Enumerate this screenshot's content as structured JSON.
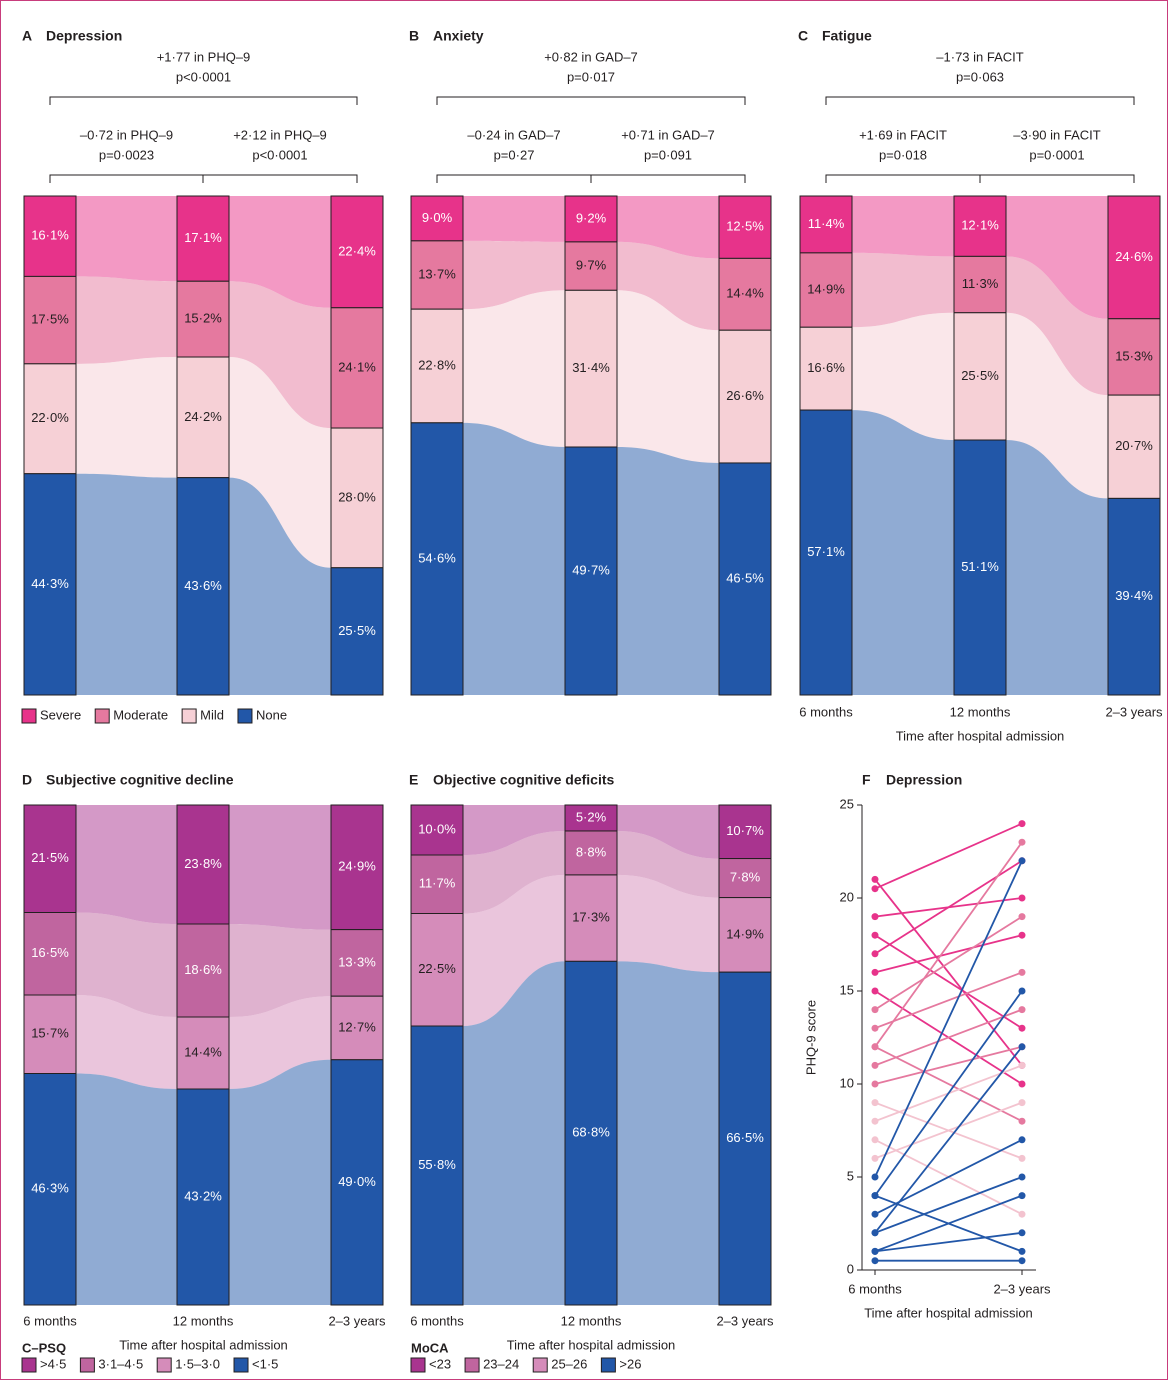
{
  "chart_data": [
    {
      "type": "alluvial",
      "panel": "A",
      "title": "Depression",
      "comparisons": {
        "overall": [
          "+1·77 in PHQ–9",
          "p<0·0001"
        ],
        "first": [
          "–0·72 in PHQ–9",
          "p=0·0023"
        ],
        "second": [
          "+2·12 in PHQ–9",
          "p<0·0001"
        ]
      },
      "series": [
        {
          "name": "Severe",
          "color": "#e7338a",
          "values": [
            16.1,
            17.1,
            22.4
          ],
          "value_labels": [
            "16·1%",
            "17·1%",
            "22·4%"
          ]
        },
        {
          "name": "Moderate",
          "color": "#e5799f",
          "values": [
            17.5,
            15.2,
            24.1
          ],
          "value_labels": [
            "17·5%",
            "15·2%",
            "24·1%"
          ]
        },
        {
          "name": "Mild",
          "color": "#f6d0d6",
          "values": [
            22.0,
            24.2,
            28.0
          ],
          "value_labels": [
            "22·0%",
            "24·2%",
            "28·0%"
          ]
        },
        {
          "name": "None",
          "color": "#2257a8",
          "values": [
            44.3,
            43.6,
            25.5
          ],
          "value_labels": [
            "44·3%",
            "43·6%",
            "25·5%"
          ]
        }
      ]
    },
    {
      "type": "alluvial",
      "panel": "B",
      "title": "Anxiety",
      "comparisons": {
        "overall": [
          "+0·82 in GAD–7",
          "p=0·017"
        ],
        "first": [
          "–0·24 in GAD–7",
          "p=0·27"
        ],
        "second": [
          "+0·71 in GAD–7",
          "p=0·091"
        ]
      },
      "series": [
        {
          "color": "#e7338a",
          "values": [
            9.0,
            9.2,
            12.5
          ],
          "value_labels": [
            "9·0%",
            "9·2%",
            "12·5%"
          ]
        },
        {
          "color": "#e5799f",
          "values": [
            13.7,
            9.7,
            14.4
          ],
          "value_labels": [
            "13·7%",
            "9·7%",
            "14·4%"
          ]
        },
        {
          "color": "#f6d0d6",
          "values": [
            22.8,
            31.4,
            26.6
          ],
          "value_labels": [
            "22·8%",
            "31·4%",
            "26·6%"
          ]
        },
        {
          "color": "#2257a8",
          "values": [
            54.6,
            49.7,
            46.5
          ],
          "value_labels": [
            "54·6%",
            "49·7%",
            "46·5%"
          ]
        }
      ]
    },
    {
      "type": "alluvial",
      "panel": "C",
      "title": "Fatigue",
      "categories": [
        "6 months",
        "12 months",
        "2–3 years"
      ],
      "xlabel": "Time after hospital admission",
      "comparisons": {
        "overall": [
          "–1·73 in FACIT",
          "p=0·063"
        ],
        "first": [
          "+1·69 in FACIT",
          "p=0·018"
        ],
        "second": [
          "–3·90 in FACIT",
          "p=0·0001"
        ]
      },
      "series": [
        {
          "color": "#e7338a",
          "values": [
            11.4,
            12.1,
            24.6
          ],
          "value_labels": [
            "11·4%",
            "12·1%",
            "24·6%"
          ]
        },
        {
          "color": "#e5799f",
          "values": [
            14.9,
            11.3,
            15.3
          ],
          "value_labels": [
            "14·9%",
            "11·3%",
            "15·3%"
          ]
        },
        {
          "color": "#f6d0d6",
          "values": [
            16.6,
            25.5,
            20.7
          ],
          "value_labels": [
            "16·6%",
            "25·5%",
            "20·7%"
          ]
        },
        {
          "color": "#2257a8",
          "values": [
            57.1,
            51.1,
            39.4
          ],
          "value_labels": [
            "57·1%",
            "51·1%",
            "39·4%"
          ]
        }
      ]
    },
    {
      "type": "alluvial",
      "panel": "D",
      "title": "Subjective cognitive decline",
      "categories": [
        "6 months",
        "12 months",
        "2–3 years"
      ],
      "xlabel": "Time after hospital admission",
      "legend_title": "C–PSQ",
      "series": [
        {
          "name": ">4·5",
          "color": "#a9348f",
          "values": [
            21.5,
            23.8,
            24.9
          ],
          "value_labels": [
            "21·5%",
            "23·8%",
            "24·9%"
          ]
        },
        {
          "name": "3·1–4·5",
          "color": "#c0659f",
          "values": [
            16.5,
            18.6,
            13.3
          ],
          "value_labels": [
            "16·5%",
            "18·6%",
            "13·3%"
          ]
        },
        {
          "name": "1·5–3·0",
          "color": "#d58cba",
          "values": [
            15.7,
            14.4,
            12.7
          ],
          "value_labels": [
            "15·7%",
            "14·4%",
            "12·7%"
          ]
        },
        {
          "name": "<1·5",
          "color": "#2257a8",
          "values": [
            46.3,
            43.2,
            49.0
          ],
          "value_labels": [
            "46·3%",
            "43·2%",
            "49·0%"
          ]
        }
      ]
    },
    {
      "type": "alluvial",
      "panel": "E",
      "title": "Objective cognitive deficits",
      "categories": [
        "6 months",
        "12 months",
        "2–3 years"
      ],
      "xlabel": "Time after hospital admission",
      "legend_title": "MoCA",
      "series": [
        {
          "name": "<23",
          "color": "#a9348f",
          "values": [
            10.0,
            5.2,
            10.7
          ],
          "value_labels": [
            "10·0%",
            "5·2%",
            "10·7%"
          ]
        },
        {
          "name": "23–24",
          "color": "#c0659f",
          "values": [
            11.7,
            8.8,
            7.8
          ],
          "value_labels": [
            "11·7%",
            "8·8%",
            "7·8%"
          ]
        },
        {
          "name": "25–26",
          "color": "#d58cba",
          "values": [
            22.5,
            17.3,
            14.9
          ],
          "value_labels": [
            "22·5%",
            "17·3%",
            "14·9%"
          ]
        },
        {
          "name": ">26",
          "color": "#2257a8",
          "values": [
            55.8,
            68.8,
            66.5
          ],
          "value_labels": [
            "55·8%",
            "68·8%",
            "66·5%"
          ]
        }
      ]
    },
    {
      "type": "slope",
      "panel": "F",
      "title": "Depression",
      "categories": [
        "6 months",
        "2–3 years"
      ],
      "xlabel": "Time after hospital admission",
      "ylabel": "PHQ-9 score",
      "ylim": [
        0,
        25
      ],
      "yticks": [
        0,
        5,
        10,
        15,
        20,
        25
      ],
      "series": [
        {
          "color": "#e7338a",
          "values": [
            21,
            11
          ]
        },
        {
          "color": "#e7338a",
          "values": [
            20.5,
            24
          ]
        },
        {
          "color": "#e7338a",
          "values": [
            19,
            20
          ]
        },
        {
          "color": "#e7338a",
          "values": [
            18,
            13
          ]
        },
        {
          "color": "#e7338a",
          "values": [
            17,
            22
          ]
        },
        {
          "color": "#e7338a",
          "values": [
            16,
            18
          ]
        },
        {
          "color": "#e7338a",
          "values": [
            15,
            10
          ]
        },
        {
          "color": "#e5799f",
          "values": [
            14,
            19
          ]
        },
        {
          "color": "#e5799f",
          "values": [
            13,
            16
          ]
        },
        {
          "color": "#e5799f",
          "values": [
            12,
            23
          ]
        },
        {
          "color": "#e5799f",
          "values": [
            12,
            8
          ]
        },
        {
          "color": "#e5799f",
          "values": [
            11,
            14
          ]
        },
        {
          "color": "#e5799f",
          "values": [
            10,
            12
          ]
        },
        {
          "color": "#f3c3cf",
          "values": [
            9,
            6
          ]
        },
        {
          "color": "#f3c3cf",
          "values": [
            8,
            11
          ]
        },
        {
          "color": "#f3c3cf",
          "values": [
            7,
            3
          ]
        },
        {
          "color": "#f3c3cf",
          "values": [
            6,
            9
          ]
        },
        {
          "color": "#2257a8",
          "values": [
            5,
            22
          ]
        },
        {
          "color": "#2257a8",
          "values": [
            4,
            1
          ]
        },
        {
          "color": "#2257a8",
          "values": [
            3,
            7
          ]
        },
        {
          "color": "#2257a8",
          "values": [
            2,
            12
          ]
        },
        {
          "color": "#2257a8",
          "values": [
            1,
            4
          ]
        },
        {
          "color": "#2257a8",
          "values": [
            0.5,
            0.5
          ]
        },
        {
          "color": "#2257a8",
          "values": [
            4,
            15
          ]
        },
        {
          "color": "#2257a8",
          "values": [
            2,
            5
          ]
        },
        {
          "color": "#2257a8",
          "values": [
            1,
            2
          ]
        }
      ]
    }
  ]
}
